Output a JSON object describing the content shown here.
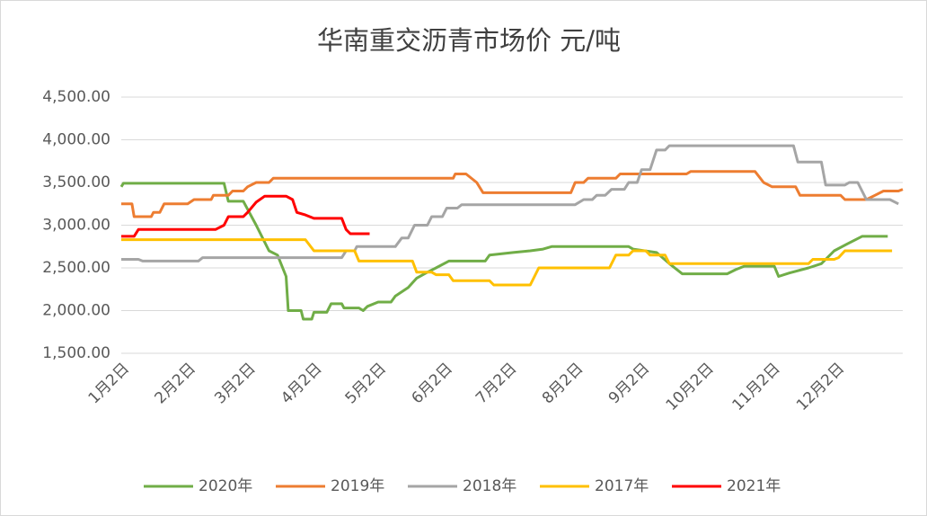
{
  "chart_data": {
    "type": "line",
    "title": "华南重交沥青市场价 元/吨",
    "xlim": [
      0,
      365
    ],
    "ylim": [
      1500,
      4500
    ],
    "xticks": [
      {
        "value": 0,
        "label": "1月2日"
      },
      {
        "value": 31,
        "label": "2月2日"
      },
      {
        "value": 59,
        "label": "3月2日"
      },
      {
        "value": 90,
        "label": "4月2日"
      },
      {
        "value": 120,
        "label": "5月2日"
      },
      {
        "value": 151,
        "label": "6月2日"
      },
      {
        "value": 181,
        "label": "7月2日"
      },
      {
        "value": 212,
        "label": "8月2日"
      },
      {
        "value": 243,
        "label": "9月2日"
      },
      {
        "value": 273,
        "label": "10月2日"
      },
      {
        "value": 304,
        "label": "11月2日"
      },
      {
        "value": 334,
        "label": "12月2日"
      }
    ],
    "yticks": [
      {
        "value": 1500,
        "label": "1,500.00"
      },
      {
        "value": 2000,
        "label": "2,000.00"
      },
      {
        "value": 2500,
        "label": "2,500.00"
      },
      {
        "value": 3000,
        "label": "3,000.00"
      },
      {
        "value": 3500,
        "label": "3,500.00"
      },
      {
        "value": 4000,
        "label": "4,000.00"
      },
      {
        "value": 4500,
        "label": "4,500.00"
      }
    ],
    "grid": true,
    "legend": "bottom",
    "series": [
      {
        "name": "2020年",
        "color": "#70ad47",
        "x": [
          0,
          1,
          48,
          50,
          57,
          63,
          69,
          73,
          77,
          78,
          84,
          85,
          89,
          90,
          96,
          98,
          103,
          104,
          111,
          113,
          115,
          120,
          126,
          128,
          134,
          138,
          143,
          147,
          153,
          170,
          172,
          183,
          191,
          197,
          201,
          237,
          239,
          250,
          256,
          262,
          283,
          287,
          291,
          305,
          307,
          312,
          321,
          327,
          333,
          339,
          346,
          358
        ],
        "values": [
          3450,
          3490,
          3490,
          3280,
          3280,
          3000,
          2700,
          2650,
          2400,
          2000,
          2000,
          1900,
          1900,
          1980,
          1980,
          2080,
          2080,
          2030,
          2030,
          2000,
          2050,
          2100,
          2100,
          2170,
          2270,
          2380,
          2450,
          2500,
          2580,
          2580,
          2650,
          2680,
          2700,
          2720,
          2750,
          2750,
          2720,
          2680,
          2550,
          2430,
          2430,
          2480,
          2520,
          2520,
          2400,
          2440,
          2500,
          2550,
          2700,
          2780,
          2870,
          2870
        ]
      },
      {
        "name": "2019年",
        "color": "#ed7d31",
        "x": [
          0,
          5,
          6,
          14,
          15,
          18,
          20,
          31,
          34,
          42,
          43,
          50,
          52,
          57,
          59,
          63,
          69,
          71,
          155,
          156,
          161,
          166,
          169,
          210,
          212,
          216,
          218,
          231,
          233,
          264,
          266,
          296,
          300,
          304,
          315,
          317,
          336,
          338,
          348,
          352,
          356,
          363,
          365
        ],
        "values": [
          3250,
          3250,
          3100,
          3100,
          3150,
          3150,
          3250,
          3250,
          3300,
          3300,
          3350,
          3350,
          3400,
          3400,
          3450,
          3500,
          3500,
          3550,
          3550,
          3600,
          3600,
          3500,
          3380,
          3380,
          3500,
          3500,
          3550,
          3550,
          3600,
          3600,
          3630,
          3630,
          3500,
          3450,
          3450,
          3350,
          3350,
          3300,
          3300,
          3350,
          3400,
          3400,
          3420
        ]
      },
      {
        "name": "2018年",
        "color": "#a5a5a5",
        "x": [
          0,
          8,
          10,
          36,
          38,
          103,
          105,
          109,
          110,
          128,
          131,
          134,
          137,
          143,
          145,
          150,
          152,
          157,
          159,
          212,
          216,
          220,
          222,
          226,
          229,
          235,
          237,
          241,
          243,
          247,
          250,
          254,
          256,
          314,
          316,
          327,
          329,
          338,
          340,
          344,
          348,
          359,
          363
        ],
        "values": [
          2600,
          2600,
          2580,
          2580,
          2620,
          2620,
          2700,
          2700,
          2750,
          2750,
          2850,
          2850,
          3000,
          3000,
          3100,
          3100,
          3200,
          3200,
          3240,
          3240,
          3300,
          3300,
          3350,
          3350,
          3420,
          3420,
          3500,
          3500,
          3650,
          3650,
          3880,
          3880,
          3930,
          3930,
          3740,
          3740,
          3470,
          3470,
          3500,
          3500,
          3300,
          3300,
          3250
        ]
      },
      {
        "name": "2017年",
        "color": "#ffc000",
        "x": [
          0,
          86,
          90,
          109,
          111,
          136,
          138,
          145,
          147,
          153,
          155,
          172,
          174,
          191,
          195,
          228,
          231,
          237,
          239,
          245,
          247,
          254,
          256,
          321,
          323,
          333,
          335,
          338,
          360
        ],
        "values": [
          2830,
          2830,
          2700,
          2700,
          2580,
          2580,
          2450,
          2450,
          2420,
          2420,
          2350,
          2350,
          2300,
          2300,
          2500,
          2500,
          2650,
          2650,
          2700,
          2700,
          2650,
          2650,
          2550,
          2550,
          2600,
          2600,
          2620,
          2700,
          2700
        ]
      },
      {
        "name": "2021年",
        "color": "#ff0000",
        "x": [
          0,
          6,
          8,
          44,
          48,
          50,
          57,
          59,
          63,
          67,
          77,
          80,
          82,
          86,
          90,
          103,
          105,
          107,
          116
        ],
        "values": [
          2870,
          2870,
          2950,
          2950,
          3000,
          3100,
          3100,
          3150,
          3270,
          3340,
          3340,
          3300,
          3150,
          3120,
          3080,
          3080,
          2950,
          2900,
          2900
        ]
      }
    ]
  }
}
